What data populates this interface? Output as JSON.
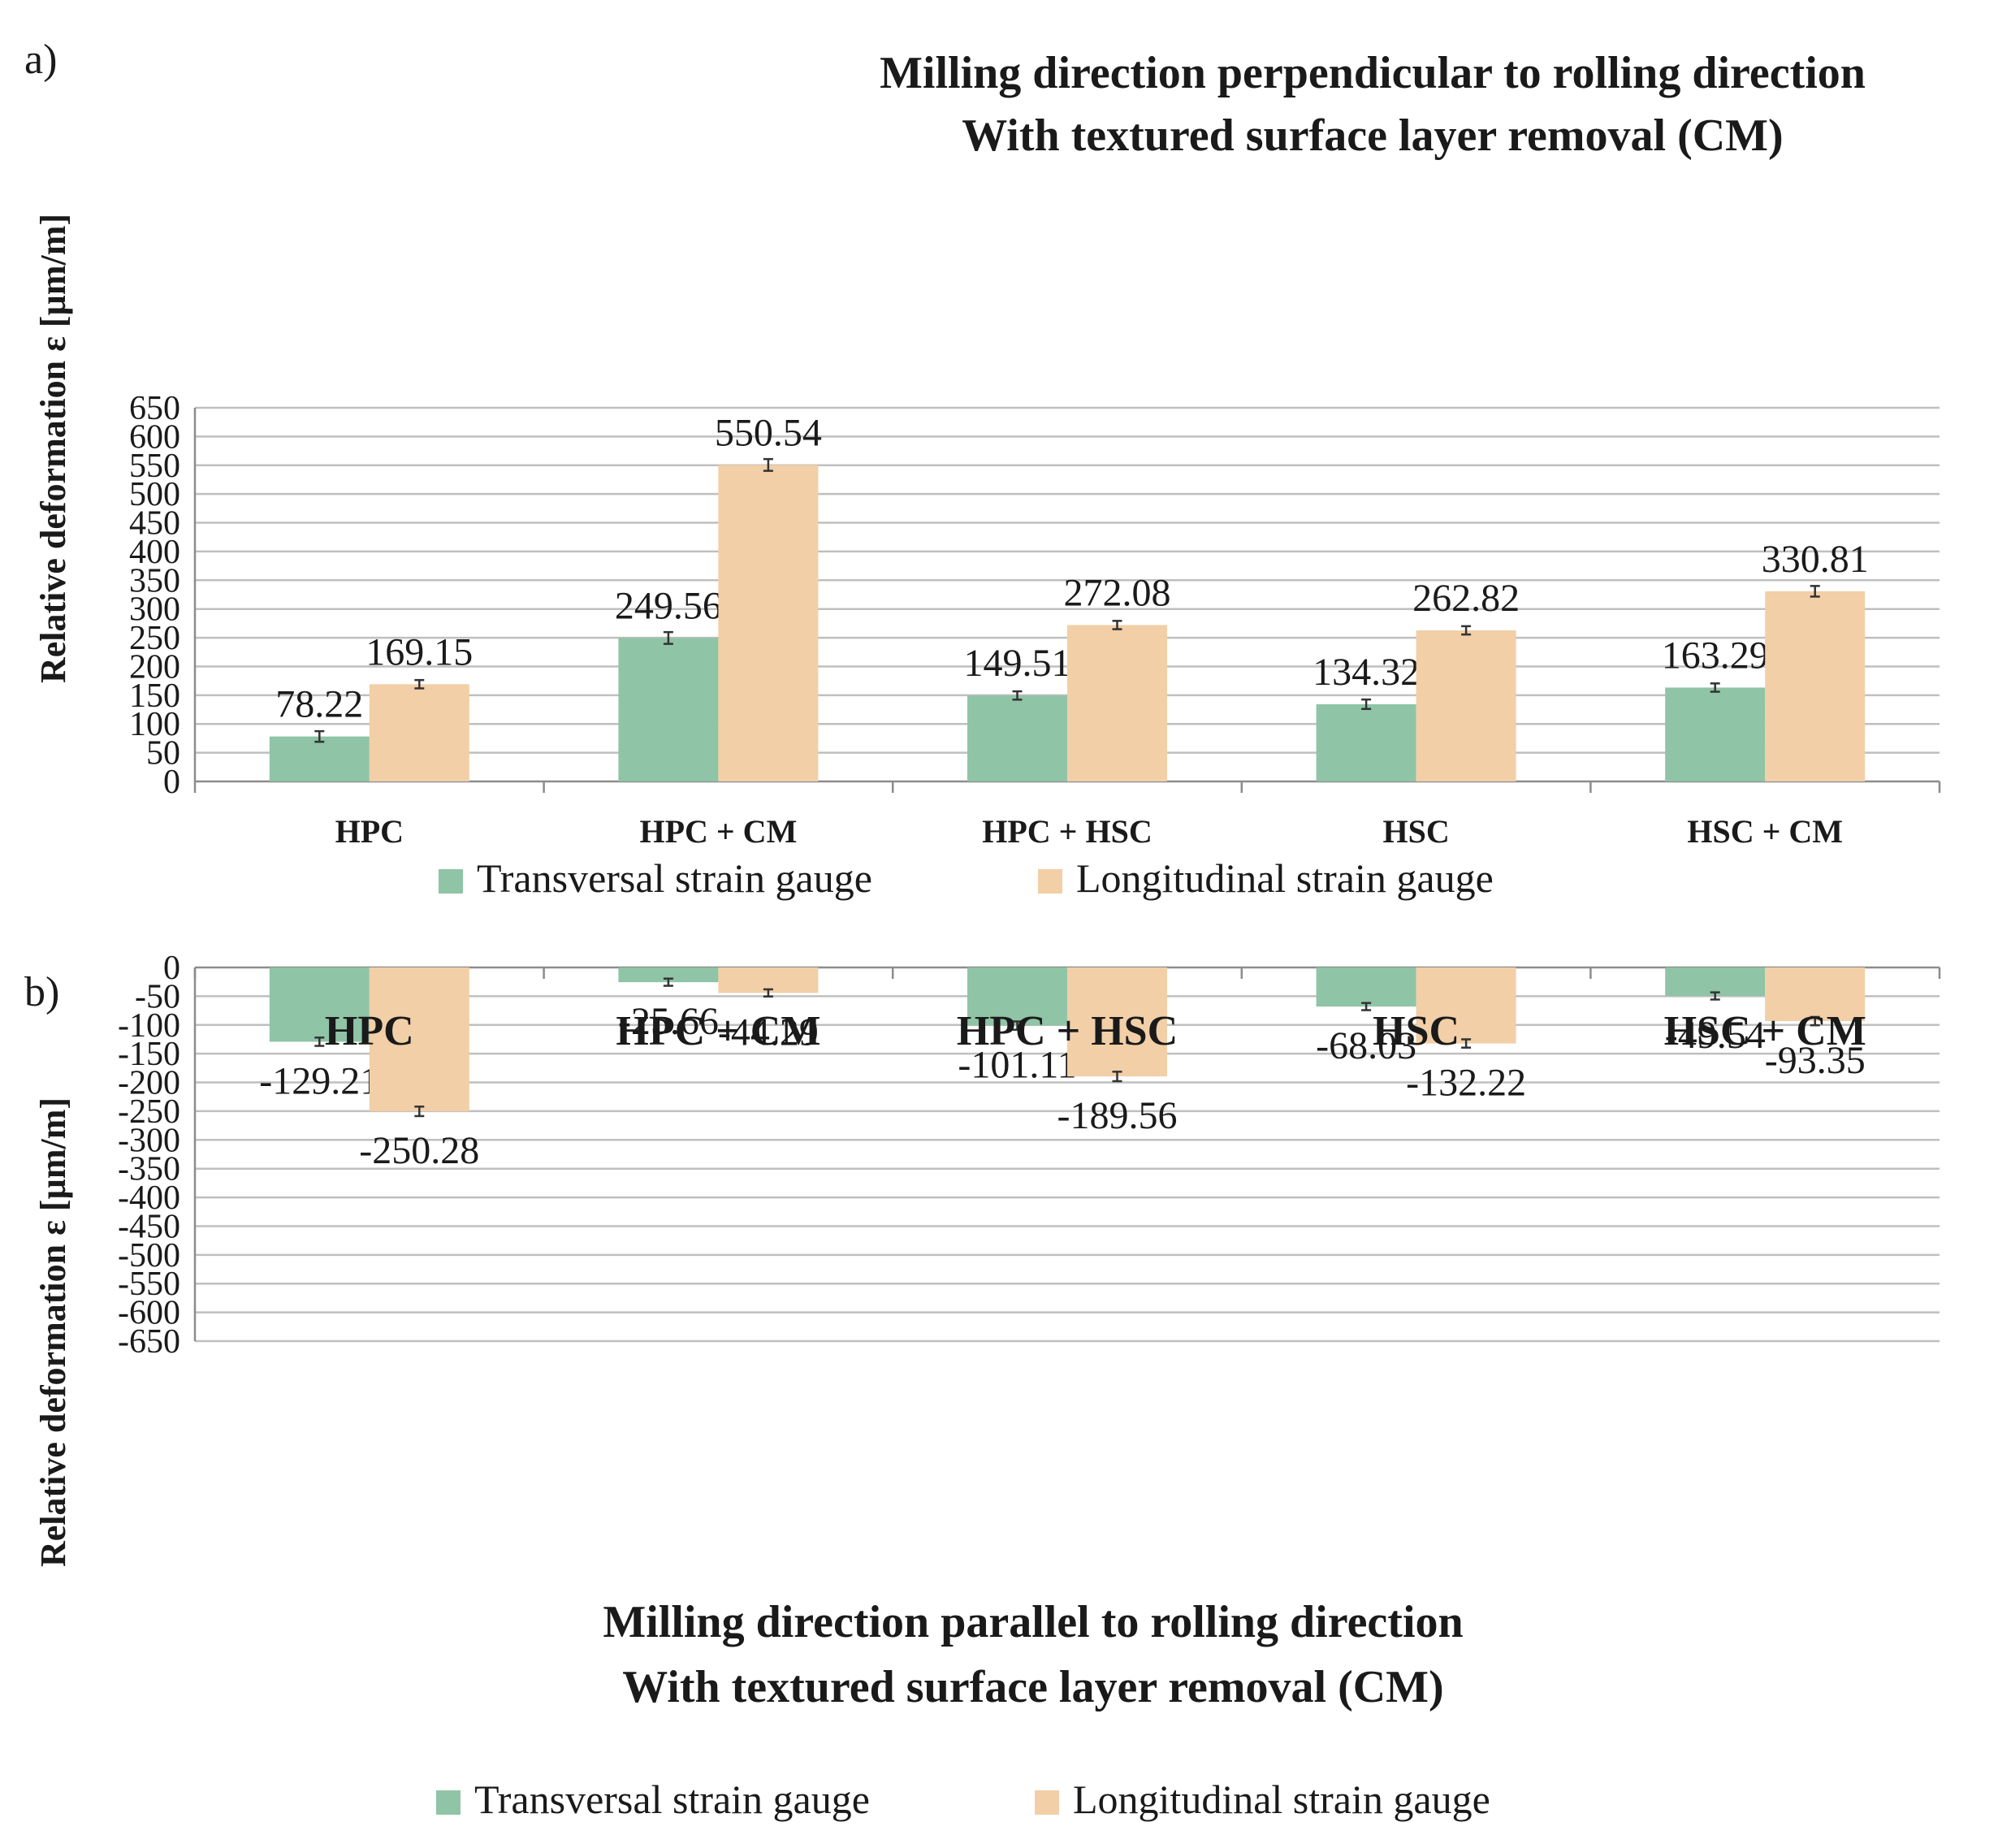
{
  "colors": {
    "transversal": "#8fc4a6",
    "longitudinal": "#f2cfa7"
  },
  "chart_data": [
    {
      "type": "bar",
      "panel_label": "a)",
      "title_lines": [
        "Milling direction perpendicular to rolling direction",
        "With textured surface layer removal (CM)"
      ],
      "ylabel": "Relative deformation ε [µm/m]",
      "xlabel": "",
      "ylim": [
        0,
        650
      ],
      "yticks": [
        0,
        50,
        100,
        150,
        200,
        250,
        300,
        350,
        400,
        450,
        500,
        550,
        600,
        650
      ],
      "grid": true,
      "legend_position": "bottom",
      "categories": [
        "HPC",
        "HPC + CM",
        "HPC + HSC",
        "HSC",
        "HSC + CM"
      ],
      "series": [
        {
          "name": "Transversal strain gauge",
          "values": [
            78.22,
            249.56,
            149.51,
            134.32,
            163.29
          ],
          "labels": [
            "78.22",
            "249.56",
            "149.51",
            "134.32",
            "163.29"
          ],
          "errors": [
            5,
            6,
            3,
            4,
            3
          ]
        },
        {
          "name": "Longitudinal strain gauge",
          "values": [
            169.15,
            550.54,
            272.08,
            262.82,
            330.81
          ],
          "labels": [
            "169.15",
            "550.54",
            "272.08",
            "262.82",
            "330.81"
          ],
          "errors": [
            3,
            6,
            3,
            3,
            5
          ]
        }
      ]
    },
    {
      "type": "bar",
      "panel_label": "b)",
      "title_lines": [
        "Milling direction parallel to rolling direction",
        "With textured surface layer removal (CM)"
      ],
      "ylabel": "Relative deformation ε [µm/m]",
      "xlabel": "",
      "ylim": [
        -650,
        0
      ],
      "yticks": [
        0,
        -50,
        -100,
        -150,
        -200,
        -250,
        -300,
        -350,
        -400,
        -450,
        -500,
        -550,
        -600,
        -650
      ],
      "grid": true,
      "legend_position": "bottom",
      "categories": [
        "HPC",
        "HPC + CM",
        "HPC + HSC",
        "HSC",
        "HSC + CM"
      ],
      "series": [
        {
          "name": "Transversal strain gauge",
          "values": [
            -129.21,
            -25.66,
            -101.11,
            -68.03,
            -49.54
          ],
          "labels": [
            "-129.21",
            "-25.66",
            "-101.11",
            "-68.03",
            "-49.54"
          ],
          "errors": [
            3,
            2,
            3,
            2,
            2
          ]
        },
        {
          "name": "Longitudinal strain gauge",
          "values": [
            -250.28,
            -44.29,
            -189.56,
            -132.22,
            -93.35
          ],
          "labels": [
            "-250.28",
            "-44.29",
            "-189.56",
            "-132.22",
            "-93.35"
          ],
          "errors": [
            4,
            2,
            4,
            3,
            3
          ]
        }
      ]
    }
  ]
}
